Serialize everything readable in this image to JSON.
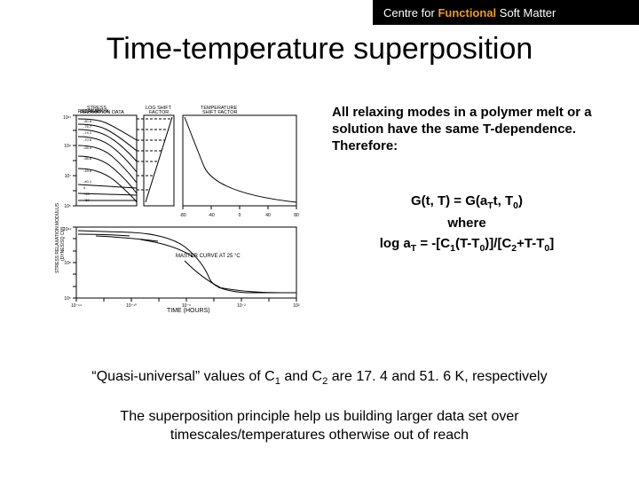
{
  "header": {
    "centre_for": "Centre for",
    "functional": "Functional",
    "soft_matter": "Soft Matter",
    "color_centre": "#ffffff",
    "color_functional": "#f39c12",
    "color_soft": "#ffffff"
  },
  "title": "Time-temperature superposition",
  "paragraph": "All relaxing modes in a polymer melt or a solution have the same T-dependence. Therefore:",
  "equations": {
    "line1_html": "G(t, T) = G(a<sub>T</sub>t, T<sub>0</sub>)",
    "line2": "where",
    "line3_html": "log a<sub>T</sub> = -[C<sub>1</sub>(T-T<sub>0</sub>)]/[C<sub>2</sub>+T-T<sub>0</sub>]"
  },
  "note1_html": "“Quasi-universal” values of C<sub>1</sub> and C<sub>2</sub> are 17. 4 and 51. 6 K, respectively",
  "note2_html": "The superposition principle help us building larger data set over<br>timescales/temperatures otherwise out of reach",
  "figure": {
    "type": "composite-line-chart",
    "panels": [
      "stress_relaxation_data",
      "log_shift_factor",
      "temperature_shift_factor"
    ],
    "top": {
      "xlabel_left": "STRESS RELAXATION DATA",
      "xlabel_mid": "LOG SHIFT FACTOR",
      "xlabel_right": "TEMPERATURE SHIFT FACTOR",
      "ylabel": "STRESS RELAXATION MODULUS (DYNES/SQ CM)",
      "y_ticks": [
        "10^5",
        "10^6",
        "10^7",
        "10^8",
        "10^9",
        "10^10",
        "10^11"
      ],
      "x_ticks_left_hours": [
        "10^-2",
        "10^-1",
        "1",
        "10",
        "10^2"
      ],
      "x_ticks_mid_log": [
        0,
        2,
        4,
        6,
        8,
        10,
        12
      ],
      "x_ticks_right_tempC": [
        -80,
        -60,
        -40,
        -20,
        0,
        20,
        40,
        60,
        80
      ],
      "temperature_labels_C": [
        "-80.8",
        "-76.7",
        "-74.1",
        "-70.6",
        "-65.4",
        "-58.8",
        "-49.6",
        "-40.1",
        "0",
        "+25",
        "+50"
      ],
      "colors": {
        "line": "#000000",
        "bg": "#ffffff"
      },
      "line_width": 1
    },
    "bottom": {
      "annotation": "MASTER CURVE AT 25 °C",
      "xlabel": "TIME (HOURS)",
      "x_ticks_log10": [
        -14,
        -12,
        -10,
        -8,
        -6,
        -4,
        -2,
        0,
        2
      ],
      "y_ticks": [
        "10^5",
        "10^6",
        "10^7",
        "10^8",
        "10^9",
        "10^10",
        "10^11"
      ],
      "colors": {
        "line": "#000000",
        "bg": "#ffffff"
      },
      "line_width": 1
    }
  }
}
